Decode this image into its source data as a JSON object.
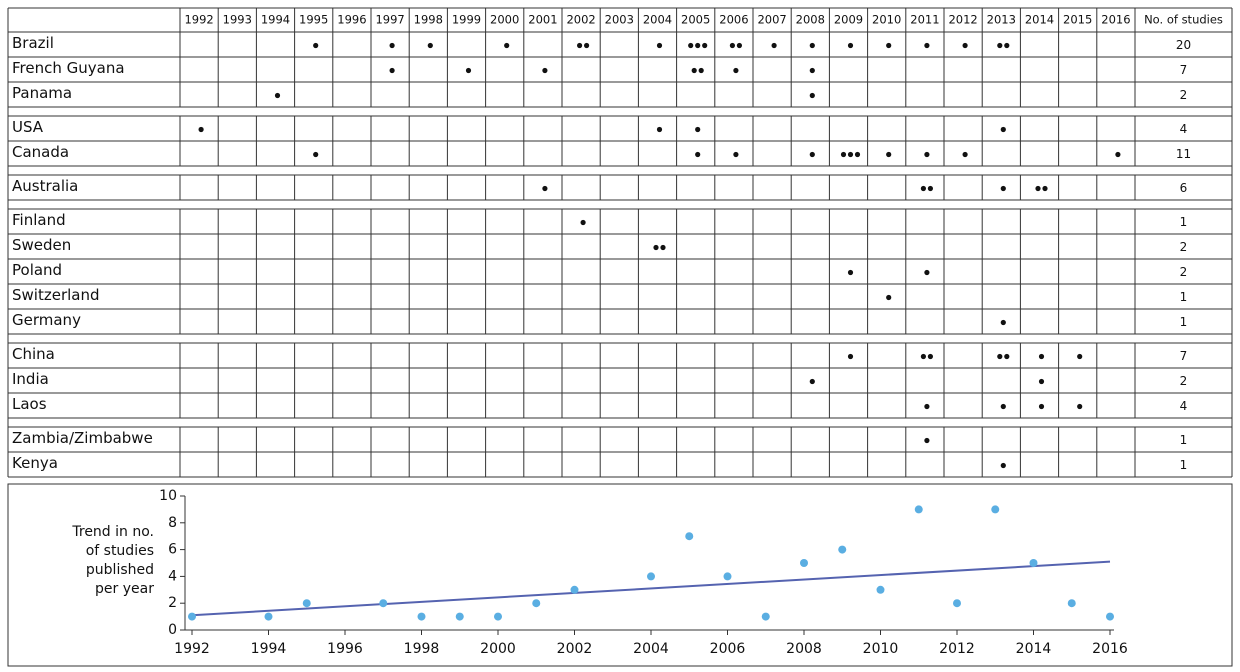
{
  "table": {
    "header": {
      "years": [
        1992,
        1993,
        1994,
        1995,
        1996,
        1997,
        1998,
        1999,
        2000,
        2001,
        2002,
        2003,
        2004,
        2005,
        2006,
        2007,
        2008,
        2009,
        2010,
        2011,
        2012,
        2013,
        2014,
        2015,
        2016
      ],
      "total": "No. of studies"
    },
    "groups": [
      [
        {
          "country": "Brazil",
          "cells": [
            {
              "year": 1995,
              "dots": 1
            },
            {
              "year": 1997,
              "dots": 1
            },
            {
              "year": 1998,
              "dots": 1
            },
            {
              "year": 2000,
              "dots": 1
            },
            {
              "year": 2002,
              "dots": 2
            },
            {
              "year": 2004,
              "dots": 1
            },
            {
              "year": 2005,
              "dots": 3
            },
            {
              "year": 2006,
              "dots": 2
            },
            {
              "year": 2007,
              "dots": 1
            },
            {
              "year": 2008,
              "dots": 1
            },
            {
              "year": 2009,
              "dots": 1
            },
            {
              "year": 2010,
              "dots": 1
            },
            {
              "year": 2011,
              "dots": 1
            },
            {
              "year": 2012,
              "dots": 1
            },
            {
              "year": 2013,
              "dots": 2
            }
          ],
          "total": 20
        },
        {
          "country": "French Guyana",
          "cells": [
            {
              "year": 1997,
              "dots": 1
            },
            {
              "year": 1999,
              "dots": 1
            },
            {
              "year": 2001,
              "dots": 1
            },
            {
              "year": 2005,
              "dots": 2
            },
            {
              "year": 2006,
              "dots": 1
            },
            {
              "year": 2008,
              "dots": 1
            }
          ],
          "total": 7
        },
        {
          "country": "Panama",
          "cells": [
            {
              "year": 1994,
              "dots": 1
            },
            {
              "year": 2008,
              "dots": 1
            }
          ],
          "total": 2
        }
      ],
      [
        {
          "country": "USA",
          "cells": [
            {
              "year": 1992,
              "dots": 1
            },
            {
              "year": 2004,
              "dots": 1
            },
            {
              "year": 2005,
              "dots": 1
            },
            {
              "year": 2013,
              "dots": 1
            }
          ],
          "total": 4
        },
        {
          "country": "Canada",
          "cells": [
            {
              "year": 1995,
              "dots": 1
            },
            {
              "year": 2005,
              "dots": 1
            },
            {
              "year": 2006,
              "dots": 1
            },
            {
              "year": 2008,
              "dots": 1
            },
            {
              "year": 2009,
              "dots": 3
            },
            {
              "year": 2010,
              "dots": 1
            },
            {
              "year": 2011,
              "dots": 1
            },
            {
              "year": 2012,
              "dots": 1
            },
            {
              "year": 2016,
              "dots": 1
            }
          ],
          "total": 11
        }
      ],
      [
        {
          "country": "Australia",
          "cells": [
            {
              "year": 2001,
              "dots": 1
            },
            {
              "year": 2011,
              "dots": 2
            },
            {
              "year": 2013,
              "dots": 1
            },
            {
              "year": 2014,
              "dots": 2
            }
          ],
          "total": 6
        }
      ],
      [
        {
          "country": "Finland",
          "cells": [
            {
              "year": 2002,
              "dots": 1
            }
          ],
          "total": 1
        },
        {
          "country": "Sweden",
          "cells": [
            {
              "year": 2004,
              "dots": 2
            }
          ],
          "total": 2
        },
        {
          "country": "Poland",
          "cells": [
            {
              "year": 2009,
              "dots": 1
            },
            {
              "year": 2011,
              "dots": 1
            }
          ],
          "total": 2
        },
        {
          "country": "Switzerland",
          "cells": [
            {
              "year": 2010,
              "dots": 1
            }
          ],
          "total": 1
        },
        {
          "country": "Germany",
          "cells": [
            {
              "year": 2013,
              "dots": 1
            }
          ],
          "total": 1
        }
      ],
      [
        {
          "country": "China",
          "cells": [
            {
              "year": 2009,
              "dots": 1
            },
            {
              "year": 2011,
              "dots": 2
            },
            {
              "year": 2013,
              "dots": 2
            },
            {
              "year": 2014,
              "dots": 1
            },
            {
              "year": 2015,
              "dots": 1
            }
          ],
          "total": 7
        },
        {
          "country": "India",
          "cells": [
            {
              "year": 2008,
              "dots": 1
            },
            {
              "year": 2014,
              "dots": 1
            }
          ],
          "total": 2
        },
        {
          "country": "Laos",
          "cells": [
            {
              "year": 2011,
              "dots": 1
            },
            {
              "year": 2013,
              "dots": 1
            },
            {
              "year": 2014,
              "dots": 1
            },
            {
              "year": 2015,
              "dots": 1
            }
          ],
          "total": 4
        }
      ],
      [
        {
          "country": "Zambia/Zimbabwe",
          "cells": [
            {
              "year": 2011,
              "dots": 1
            }
          ],
          "total": 1
        },
        {
          "country": "Kenya",
          "cells": [
            {
              "year": 2013,
              "dots": 1
            }
          ],
          "total": 1
        }
      ]
    ]
  },
  "chart_data": {
    "type": "scatter",
    "ylabel": [
      "Trend in no.",
      "of studies",
      "published",
      "per year"
    ],
    "xlim": [
      1992,
      2016
    ],
    "xticks": [
      1992,
      1994,
      1996,
      1998,
      2000,
      2002,
      2004,
      2006,
      2008,
      2010,
      2012,
      2014,
      2016
    ],
    "ylim": [
      0,
      10
    ],
    "yticks": [
      0,
      2,
      4,
      6,
      8,
      10
    ],
    "series": [
      {
        "type": "scatter",
        "color": "#5aaee2",
        "x": [
          1992,
          1994,
          1995,
          1997,
          1998,
          1999,
          2000,
          2001,
          2002,
          2004,
          2005,
          2006,
          2007,
          2008,
          2009,
          2010,
          2011,
          2012,
          2013,
          2014,
          2015,
          2016
        ],
        "values": [
          1,
          1,
          2,
          2,
          1,
          1,
          1,
          2,
          3,
          4,
          7,
          4,
          1,
          5,
          6,
          3,
          9,
          2,
          9,
          5,
          2,
          1
        ]
      },
      {
        "type": "line",
        "color": "#5563b0",
        "x": [
          1992,
          2016
        ],
        "values": [
          1.1,
          5.1
        ]
      }
    ]
  }
}
